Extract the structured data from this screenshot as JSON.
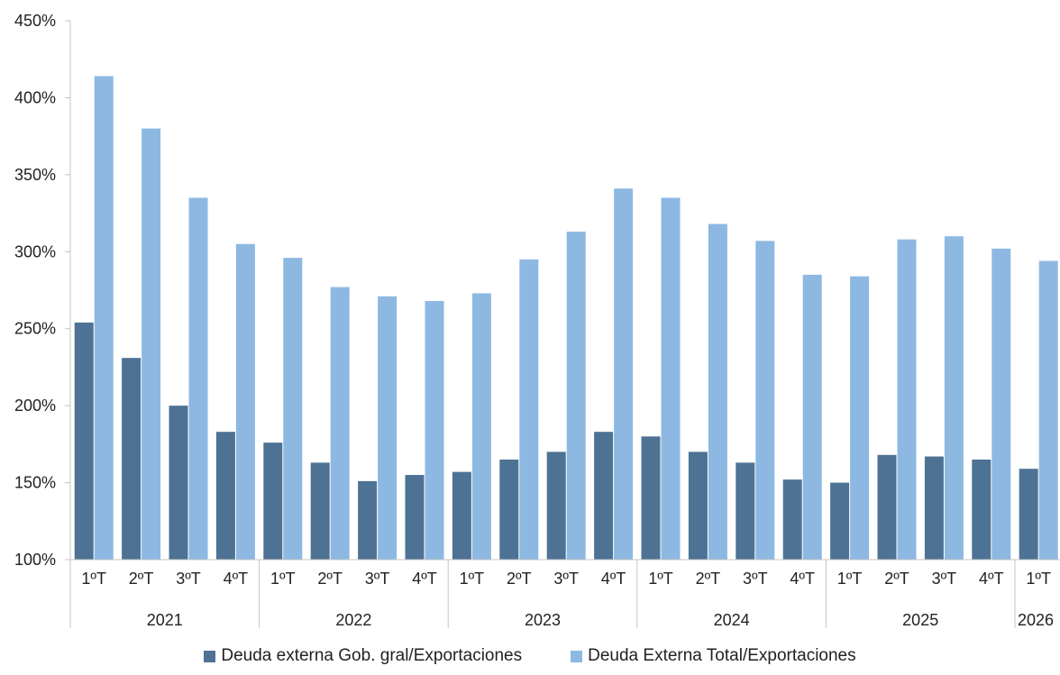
{
  "colors": {
    "gob_gral": "#4e7294",
    "total": "#8db8e2",
    "axis": "#c4c4c4"
  },
  "chart_data": {
    "type": "bar",
    "title": "",
    "xlabel": "",
    "ylabel": "",
    "ylim": [
      100,
      450
    ],
    "yticks": [
      100,
      150,
      200,
      250,
      300,
      350,
      400,
      450
    ],
    "ytick_labels": [
      "100%",
      "150%",
      "200%",
      "250%",
      "300%",
      "350%",
      "400%",
      "450%"
    ],
    "grid": false,
    "legend_position": "bottom",
    "categories": [
      "1ºT",
      "2ºT",
      "3ºT",
      "4ºT",
      "1ºT",
      "2ºT",
      "3ºT",
      "4ºT",
      "1ºT",
      "2ºT",
      "3ºT",
      "4ºT",
      "1ºT",
      "2ºT",
      "3ºT",
      "4ºT",
      "1ºT",
      "2ºT",
      "3ºT",
      "4ºT",
      "1ºT"
    ],
    "groups": [
      {
        "label": "2021",
        "count": 4
      },
      {
        "label": "2022",
        "count": 4
      },
      {
        "label": "2023",
        "count": 4
      },
      {
        "label": "2024",
        "count": 4
      },
      {
        "label": "2025",
        "count": 4
      },
      {
        "label": "2026",
        "count": 1
      }
    ],
    "series": [
      {
        "name": "Deuda externa Gob. gral/Exportaciones",
        "values": [
          254,
          231,
          200,
          183,
          176,
          163,
          151,
          155,
          157,
          165,
          170,
          183,
          180,
          170,
          163,
          152,
          150,
          168,
          167,
          165,
          159
        ]
      },
      {
        "name": "Deuda Externa Total/Exportaciones",
        "values": [
          414,
          380,
          335,
          305,
          296,
          277,
          271,
          268,
          273,
          295,
          313,
          341,
          335,
          318,
          307,
          285,
          284,
          308,
          310,
          302,
          294
        ]
      }
    ]
  }
}
